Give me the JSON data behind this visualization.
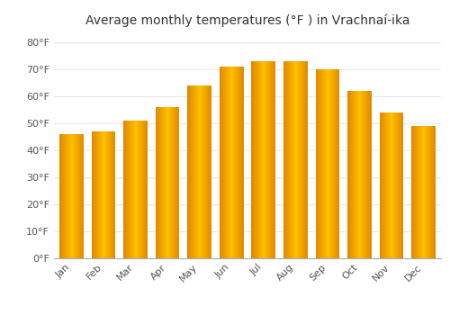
{
  "months": [
    "Jan",
    "Feb",
    "Mar",
    "Apr",
    "May",
    "Jun",
    "Jul",
    "Aug",
    "Sep",
    "Oct",
    "Nov",
    "Dec"
  ],
  "temperatures": [
    46,
    47,
    51,
    56,
    64,
    71,
    73,
    73,
    70,
    62,
    54,
    49
  ],
  "title": "Average monthly temperatures (°F ) in Vrachnaí-ika",
  "yticks": [
    0,
    10,
    20,
    30,
    40,
    50,
    60,
    70,
    80
  ],
  "ytick_labels": [
    "0°F",
    "10°F",
    "20°F",
    "30°F",
    "40°F",
    "50°F",
    "60°F",
    "70°F",
    "80°F"
  ],
  "ylim": [
    0,
    84
  ],
  "bar_color_center": "#FFB300",
  "bar_color_edge": "#E07800",
  "background_color": "#ffffff",
  "plot_bg_color": "#ffffff",
  "grid_color": "#e8e8e8",
  "title_fontsize": 10,
  "tick_fontsize": 8,
  "bar_width": 0.75
}
